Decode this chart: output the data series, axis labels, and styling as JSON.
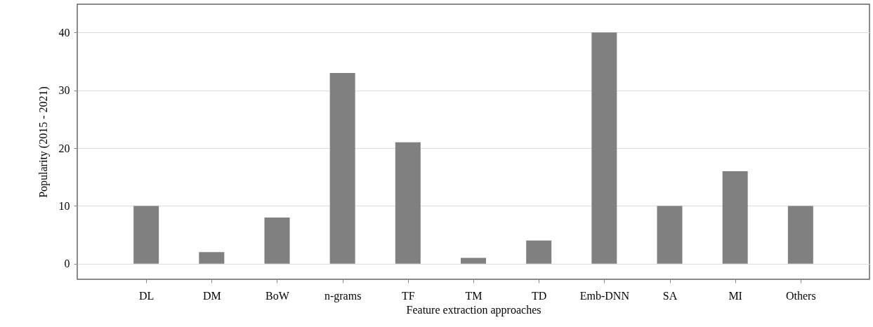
{
  "chart_data": {
    "type": "bar",
    "xlabel": "Feature extraction approaches",
    "ylabel": "Popularity (2015 - 2021)",
    "categories": [
      "DL",
      "DM",
      "BoW",
      "n-grams",
      "TF",
      "TM",
      "TD",
      "Emb-DNN",
      "SA",
      "MI",
      "Others"
    ],
    "values": [
      10,
      2,
      8,
      33,
      21,
      1,
      4,
      40,
      10,
      16,
      10
    ],
    "color": "#808080",
    "ylim": [
      -2.7,
      44.9
    ],
    "yticks": [
      0,
      10,
      20,
      30,
      40
    ],
    "grid": "y"
  }
}
